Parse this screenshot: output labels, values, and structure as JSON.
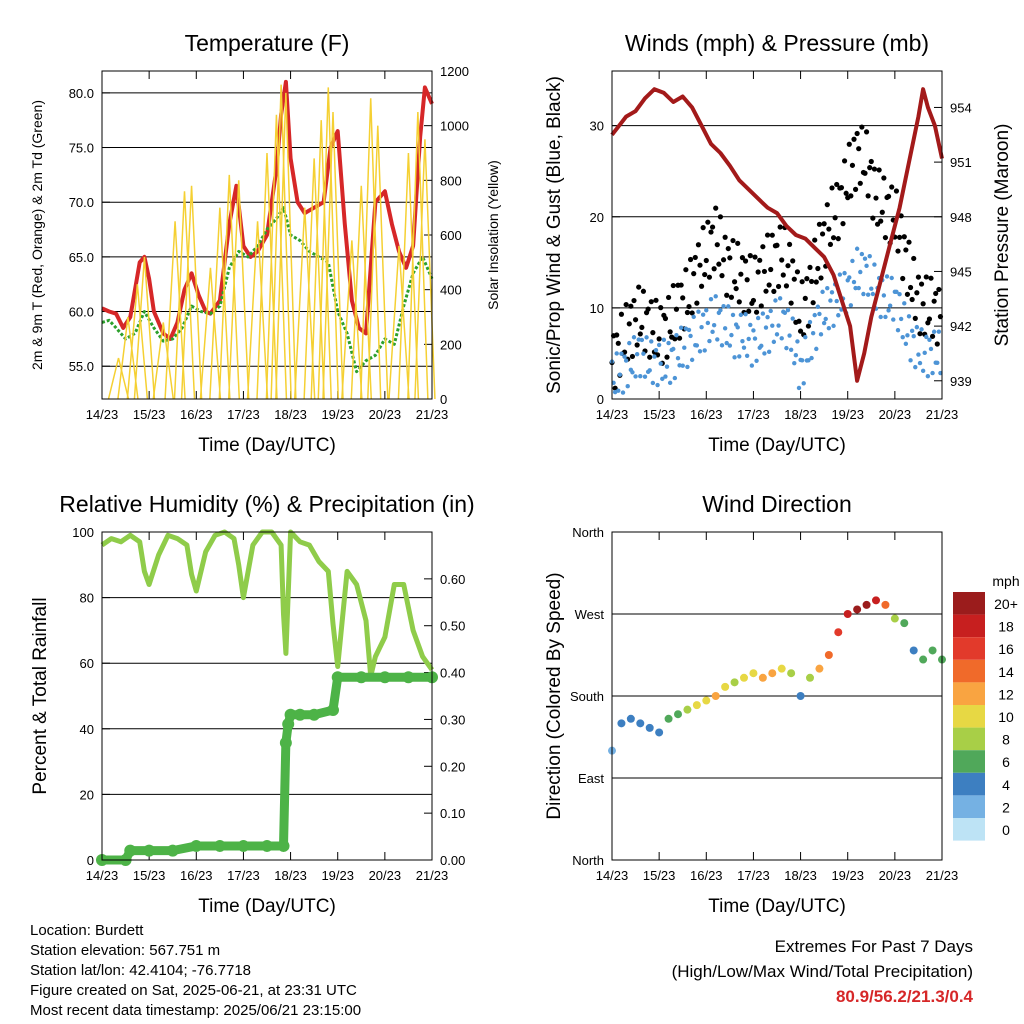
{
  "x_tick_labels": [
    "14/23",
    "15/23",
    "16/23",
    "17/23",
    "18/23",
    "19/23",
    "20/23",
    "21/23"
  ],
  "xlabel": "Time (Day/UTC)",
  "chart_data": [
    {
      "id": "temperature",
      "type": "line",
      "title": "Temperature (F)",
      "xlabel": "Time (Day/UTC)",
      "ylabel": "2m & 9m T (Red, Orange) & 2m Td (Green)",
      "y2label": "Solar Insolation (Yellow)",
      "xlim": [
        0,
        7
      ],
      "ylim": [
        52,
        82
      ],
      "y_ticks": [
        "55.0",
        "60.0",
        "65.0",
        "70.0",
        "75.0",
        "80.0"
      ],
      "y2lim": [
        0,
        1200
      ],
      "y2_ticks": [
        "0",
        "200",
        "400",
        "600",
        "800",
        "1000",
        "1200"
      ],
      "series": [
        {
          "color": "#d62728",
          "x": [
            0,
            0.15,
            0.3,
            0.45,
            0.6,
            0.8,
            0.9,
            1.0,
            1.1,
            1.3,
            1.45,
            1.6,
            1.75,
            1.9,
            2.05,
            2.2,
            2.3,
            2.5,
            2.7,
            2.85,
            3.0,
            3.15,
            3.3,
            3.5,
            3.7,
            3.8,
            3.9,
            4.0,
            4.15,
            4.3,
            4.5,
            4.7,
            4.85,
            5.0,
            5.15,
            5.3,
            5.45,
            5.6,
            5.8,
            6.0,
            6.15,
            6.3,
            6.45,
            6.6,
            6.75,
            6.85,
            6.95,
            7.0
          ],
          "values": [
            60.3,
            60.0,
            59.8,
            58.5,
            59.5,
            64.5,
            65.0,
            63.0,
            60.0,
            58.0,
            57.5,
            59.0,
            62.0,
            63.5,
            61.5,
            60.0,
            59.8,
            61.0,
            68.0,
            71.5,
            66.0,
            65.0,
            65.5,
            67.0,
            73.0,
            78.0,
            81.0,
            74.0,
            70.0,
            69.0,
            69.5,
            70.0,
            75.0,
            76.5,
            68.0,
            61.0,
            58.5,
            58.0,
            70.0,
            71.0,
            68.0,
            65.5,
            64.0,
            66.0,
            76.0,
            80.5,
            79.5,
            79.0
          ]
        },
        {
          "color": "#2ca02c",
          "x": [
            0,
            0.15,
            0.3,
            0.5,
            0.7,
            0.9,
            1.1,
            1.3,
            1.5,
            1.7,
            1.9,
            2.1,
            2.3,
            2.5,
            2.7,
            2.9,
            3.1,
            3.3,
            3.5,
            3.7,
            3.85,
            4.0,
            4.2,
            4.4,
            4.6,
            4.8,
            5.0,
            5.2,
            5.4,
            5.6,
            5.8,
            6.0,
            6.2,
            6.4,
            6.6,
            6.8,
            7.0
          ],
          "values": [
            59.0,
            59.2,
            58.5,
            57.5,
            58.0,
            60.0,
            58.5,
            57.3,
            57.5,
            58.5,
            60.5,
            60.0,
            59.8,
            60.5,
            64.0,
            65.5,
            65.0,
            66.0,
            67.5,
            68.5,
            69.5,
            67.0,
            66.5,
            65.5,
            65.0,
            64.5,
            60.0,
            58.0,
            54.5,
            55.5,
            56.0,
            57.5,
            57.0,
            60.5,
            63.5,
            65.0,
            63.0
          ]
        },
        {
          "color": "#f5d033",
          "type": "area-spikes",
          "axis": "y2",
          "x": [
            0.35,
            0.55,
            0.75,
            0.9,
            1.3,
            1.55,
            1.75,
            1.9,
            2.3,
            2.5,
            2.7,
            2.9,
            3.3,
            3.5,
            3.7,
            3.8,
            3.9,
            4.3,
            4.5,
            4.65,
            4.8,
            4.9,
            5.3,
            5.5,
            5.7,
            5.85,
            6.3,
            6.5,
            6.7,
            6.85
          ],
          "values": [
            150,
            300,
            420,
            520,
            280,
            650,
            760,
            780,
            480,
            700,
            820,
            800,
            650,
            900,
            1040,
            1150,
            1120,
            700,
            880,
            1020,
            1140,
            1050,
            580,
            780,
            1100,
            1000,
            560,
            900,
            1050,
            950
          ]
        }
      ]
    },
    {
      "id": "winds",
      "type": "scatter",
      "title": "Winds (mph) & Pressure (mb)",
      "xlabel": "Time (Day/UTC)",
      "ylabel": "Sonic/Prop Wind & Gust (Blue, Black)",
      "y2label": "Station Pressure (Maroon)",
      "xlim": [
        0,
        7
      ],
      "ylim": [
        0,
        36
      ],
      "y_ticks": [
        "0",
        "10",
        "20",
        "30"
      ],
      "y2lim": [
        938,
        956
      ],
      "y2_ticks": [
        "939",
        "942",
        "945",
        "948",
        "951",
        "954"
      ],
      "series": [
        {
          "color": "#000000",
          "x": [
            0,
            0.2,
            0.4,
            0.6,
            0.8,
            1.0,
            1.2,
            1.4,
            1.6,
            1.8,
            2.0,
            2.2,
            2.4,
            2.6,
            2.8,
            3.0,
            3.2,
            3.4,
            3.6,
            3.8,
            4.0,
            4.2,
            4.4,
            4.6,
            4.8,
            5.0,
            5.2,
            5.4,
            5.6,
            5.8,
            6.0,
            6.2,
            6.4,
            6.6,
            6.8,
            7.0
          ],
          "values": [
            4,
            6,
            8,
            9,
            8,
            7,
            8,
            10,
            11,
            14,
            16,
            18,
            15,
            14,
            13,
            12,
            14,
            15,
            16,
            14,
            9,
            12,
            16,
            19,
            21,
            24,
            27,
            26,
            22,
            21,
            20,
            16,
            12,
            10,
            10,
            9
          ]
        },
        {
          "color": "#4d94d6",
          "x": [
            0,
            0.2,
            0.4,
            0.6,
            0.8,
            1.0,
            1.2,
            1.4,
            1.6,
            1.8,
            2.0,
            2.2,
            2.4,
            2.6,
            2.8,
            3.0,
            3.2,
            3.4,
            3.6,
            3.8,
            4.0,
            4.2,
            4.4,
            4.6,
            4.8,
            5.0,
            5.2,
            5.4,
            5.6,
            5.8,
            6.0,
            6.2,
            6.4,
            6.6,
            6.8,
            7.0
          ],
          "values": [
            2,
            3,
            4,
            5,
            4,
            4,
            4,
            5,
            6,
            7,
            8,
            9,
            8,
            7,
            7,
            6,
            7,
            8,
            9,
            7,
            3,
            6,
            9,
            10,
            11,
            12,
            14,
            14,
            12,
            11,
            11,
            8,
            6,
            5,
            5,
            5
          ]
        },
        {
          "color": "#a31a1a",
          "axis": "y2",
          "x": [
            0,
            0.15,
            0.3,
            0.5,
            0.7,
            0.9,
            1.1,
            1.3,
            1.5,
            1.7,
            1.9,
            2.1,
            2.3,
            2.5,
            2.7,
            2.9,
            3.1,
            3.3,
            3.5,
            3.7,
            3.9,
            4.1,
            4.3,
            4.5,
            4.7,
            4.9,
            5.05,
            5.2,
            5.35,
            5.5,
            5.7,
            5.9,
            6.1,
            6.3,
            6.5,
            6.6,
            6.7,
            6.85,
            7.0
          ],
          "values": [
            952.5,
            953.0,
            953.5,
            953.8,
            954.5,
            955.0,
            954.8,
            954.3,
            954.6,
            954.0,
            953.0,
            952.0,
            951.5,
            950.8,
            950.0,
            949.5,
            949.0,
            948.5,
            948.2,
            947.5,
            947.0,
            946.8,
            946.3,
            945.8,
            944.8,
            943.2,
            942.0,
            939.0,
            940.5,
            942.5,
            944.5,
            946.5,
            948.5,
            951.0,
            953.5,
            955.0,
            954.0,
            953.0,
            951.2
          ]
        }
      ]
    },
    {
      "id": "humidity",
      "type": "line",
      "title": "Relative Humidity (%) & Precipitation (in)",
      "xlabel": "Time (Day/UTC)",
      "ylabel": "Percent & Total Rainfall",
      "xlim": [
        0,
        7
      ],
      "ylim": [
        0,
        100
      ],
      "y_ticks": [
        "0",
        "20",
        "40",
        "60",
        "80",
        "100"
      ],
      "y2lim": [
        0,
        0.7
      ],
      "y2_ticks": [
        "0.00",
        "0.10",
        "0.20",
        "0.30",
        "0.40",
        "0.50",
        "0.60"
      ],
      "series": [
        {
          "color": "#8fcc4a",
          "x": [
            0,
            0.2,
            0.4,
            0.6,
            0.8,
            0.9,
            1.0,
            1.2,
            1.4,
            1.6,
            1.8,
            1.9,
            2.0,
            2.2,
            2.4,
            2.6,
            2.8,
            2.9,
            3.0,
            3.2,
            3.4,
            3.6,
            3.8,
            3.85,
            3.9,
            4.0,
            4.2,
            4.4,
            4.6,
            4.8,
            4.9,
            5.0,
            5.2,
            5.4,
            5.6,
            5.7,
            5.8,
            6.0,
            6.2,
            6.4,
            6.6,
            6.8,
            7.0
          ],
          "values": [
            96,
            98,
            97,
            99,
            97,
            88,
            84,
            93,
            99,
            98,
            96,
            87,
            82,
            94,
            99,
            100,
            98,
            90,
            80,
            96,
            100,
            100,
            96,
            75,
            63,
            100,
            97,
            96,
            91,
            88,
            72,
            59,
            88,
            84,
            73,
            56,
            62,
            68,
            84,
            84,
            70,
            62,
            58
          ]
        },
        {
          "color": "#4db347",
          "type": "step",
          "axis": "y2",
          "x": [
            0,
            0.5,
            0.6,
            1.0,
            1.5,
            2.0,
            2.5,
            3.0,
            3.5,
            3.85,
            3.9,
            3.95,
            4.0,
            4.2,
            4.5,
            4.9,
            5.0,
            5.5,
            6.0,
            6.5,
            7.0
          ],
          "values": [
            0.0,
            0.0,
            0.02,
            0.02,
            0.02,
            0.03,
            0.03,
            0.03,
            0.03,
            0.03,
            0.25,
            0.29,
            0.31,
            0.31,
            0.31,
            0.32,
            0.39,
            0.39,
            0.39,
            0.39,
            0.39
          ]
        }
      ]
    },
    {
      "id": "wind_direction",
      "type": "scatter",
      "title": "Wind Direction",
      "xlabel": "Time (Day/UTC)",
      "ylabel": "Direction (Colored By Speed)",
      "xlim": [
        0,
        7
      ],
      "ylim": [
        0,
        360
      ],
      "y_ticks": [
        "North",
        "East",
        "South",
        "West",
        "North"
      ],
      "colorbar_title": "mph",
      "colorbar_labels": [
        "20+",
        "18",
        "16",
        "14",
        "12",
        "10",
        "8",
        "6",
        "4",
        "2",
        "0"
      ],
      "colorbar_colors": [
        "#9b1c1c",
        "#c71f1f",
        "#e23a2b",
        "#f06a2a",
        "#f9a441",
        "#e7d844",
        "#a8cf47",
        "#50a85a",
        "#3d7fc1",
        "#75b1e3",
        "#bde3f5"
      ],
      "series": [
        {
          "name": "",
          "x": [
            0,
            0.2,
            0.4,
            0.6,
            0.8,
            1.0,
            1.2,
            1.4,
            1.6,
            1.8,
            2.0,
            2.2,
            2.4,
            2.6,
            2.8,
            3.0,
            3.2,
            3.4,
            3.6,
            3.8,
            4.0,
            4.2,
            4.4,
            4.6,
            4.8,
            5.0,
            5.2,
            5.4,
            5.6,
            5.8,
            6.0,
            6.2,
            6.4,
            6.6,
            6.8,
            7.0
          ],
          "values": [
            120,
            150,
            155,
            150,
            145,
            140,
            155,
            160,
            165,
            170,
            175,
            180,
            190,
            195,
            200,
            205,
            200,
            205,
            210,
            205,
            180,
            200,
            210,
            225,
            250,
            270,
            275,
            280,
            285,
            280,
            265,
            260,
            230,
            220,
            230,
            220
          ],
          "speeds": [
            2,
            3,
            4,
            4,
            3,
            3,
            5,
            6,
            8,
            9,
            10,
            11,
            9,
            8,
            10,
            9,
            11,
            12,
            10,
            8,
            4,
            8,
            11,
            14,
            16,
            18,
            20,
            20,
            17,
            14,
            8,
            6,
            4,
            5,
            6,
            5
          ]
        }
      ]
    }
  ],
  "info": {
    "location": "Location: Burdett",
    "elevation": "Station elevation: 567.751 m",
    "latlon": "Station lat/lon: 42.4104; -76.7718",
    "created": "Figure created on Sat, 2025-06-21, at 23:31 UTC",
    "recent": "Most recent data timestamp: 2025/06/21 23:15:00"
  },
  "extremes": {
    "line1": "Extremes For Past 7 Days",
    "line2": "(High/Low/Max Wind/Total Precipitation)",
    "values": "80.9/56.2/21.3/0.4",
    "values_color": "#d62728"
  }
}
